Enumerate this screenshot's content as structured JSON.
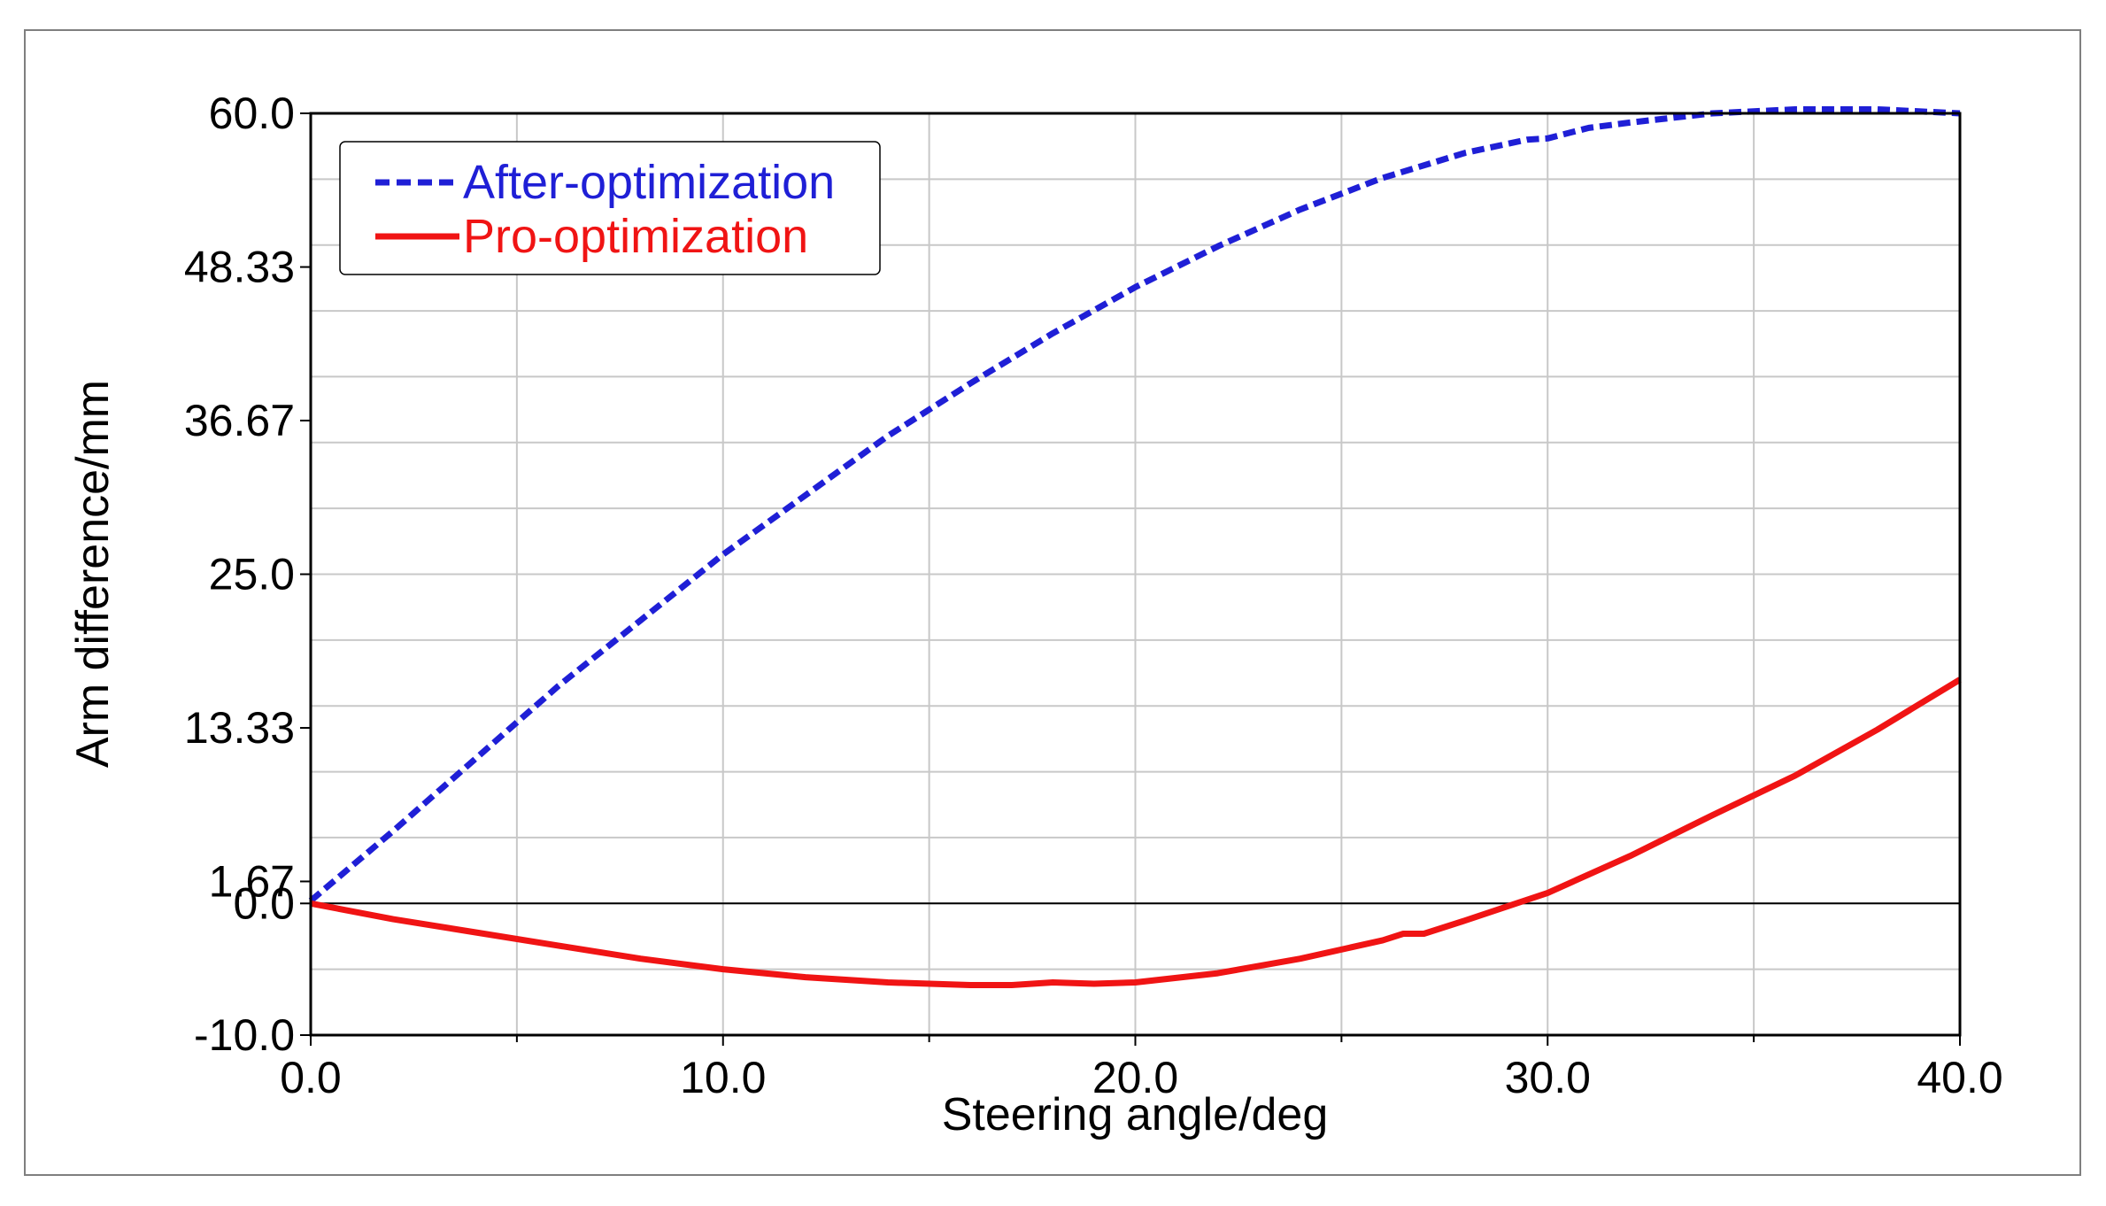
{
  "chart_data": {
    "type": "line",
    "title": "",
    "xlabel": "Steering angle/deg",
    "ylabel": "Arm difference/mm",
    "xlim": [
      0,
      40
    ],
    "ylim": [
      -10,
      60
    ],
    "xticks": [
      "0.0",
      "10.0",
      "20.0",
      "30.0",
      "40.0"
    ],
    "xtick_values": [
      0,
      10,
      20,
      30,
      40
    ],
    "yticks": [
      "60.0",
      "48.33",
      "36.67",
      "25.0",
      "13.33",
      "1.67",
      "0.0",
      "-10.0"
    ],
    "ytick_values": [
      60,
      48.33,
      36.67,
      25,
      13.33,
      1.67,
      0,
      -10
    ],
    "grid": true,
    "legend_position": "top-left",
    "series": [
      {
        "name": "After-optimization",
        "color": "#1f1fd6",
        "style": "dashed",
        "x": [
          0,
          2,
          4,
          6,
          8,
          10,
          12,
          14,
          16,
          18,
          20,
          22,
          24,
          26,
          28,
          29.5,
          30,
          31,
          32,
          34,
          36,
          38,
          40
        ],
        "y": [
          0.2,
          5.5,
          11,
          16.5,
          21.5,
          26.5,
          31,
          35.5,
          39.5,
          43.3,
          46.8,
          49.9,
          52.7,
          55.1,
          57.0,
          58.0,
          58.1,
          58.9,
          59.3,
          60.0,
          60.3,
          60.3,
          60.0
        ]
      },
      {
        "name": "Pro-optimization",
        "color": "#f01414",
        "style": "solid",
        "x": [
          0,
          2,
          4,
          6,
          8,
          10,
          12,
          14,
          16,
          17,
          18,
          19,
          20,
          22,
          24,
          26,
          26.5,
          27,
          28,
          30,
          32,
          34,
          36,
          38,
          40
        ],
        "y": [
          0,
          -1.2,
          -2.2,
          -3.2,
          -4.2,
          -5.0,
          -5.6,
          -6.0,
          -6.2,
          -6.2,
          -6.0,
          -6.1,
          -6.0,
          -5.3,
          -4.2,
          -2.8,
          -2.3,
          -2.3,
          -1.3,
          0.8,
          3.6,
          6.7,
          9.7,
          13.2,
          17.0
        ]
      }
    ]
  }
}
